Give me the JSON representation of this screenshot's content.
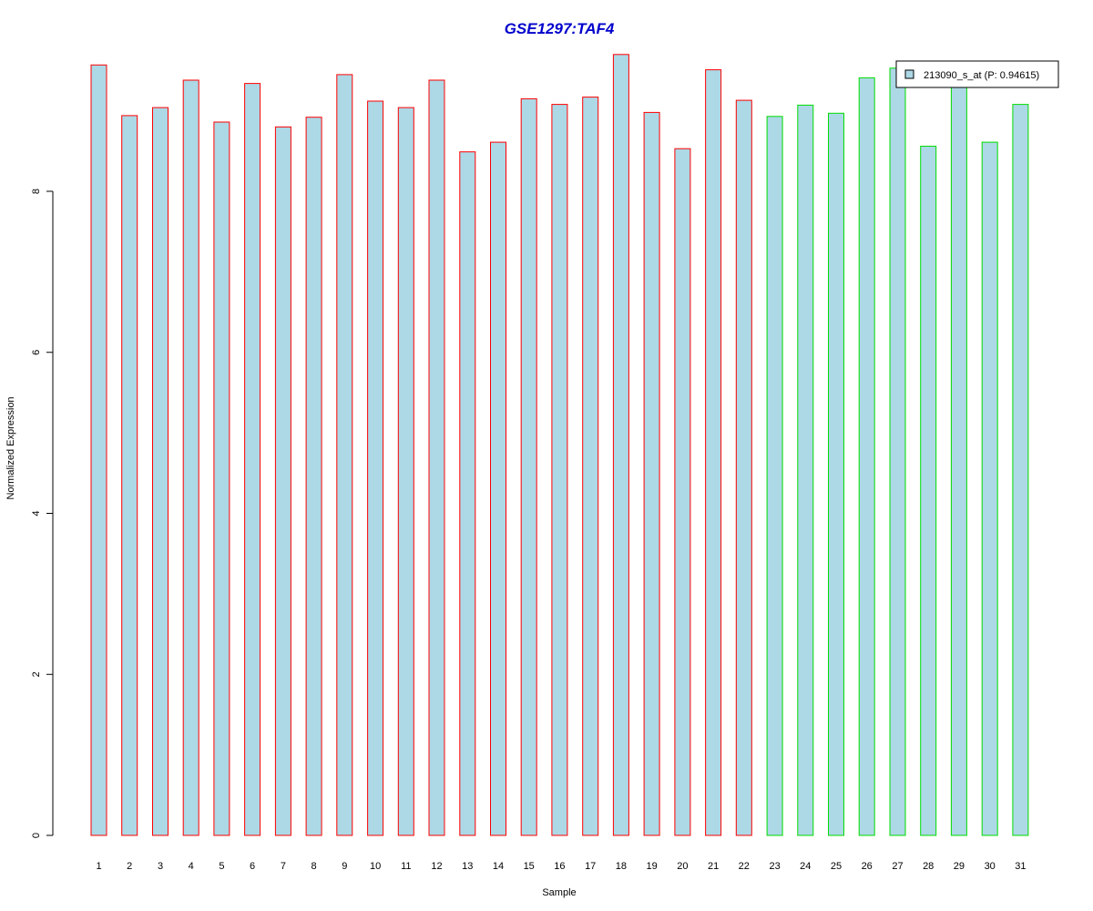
{
  "chart_data": {
    "type": "bar",
    "title": "GSE1297:TAF4",
    "xlabel": "Sample",
    "ylabel": "Normalized Expression",
    "categories": [
      "1",
      "2",
      "3",
      "4",
      "5",
      "6",
      "7",
      "8",
      "9",
      "10",
      "11",
      "12",
      "13",
      "14",
      "15",
      "16",
      "17",
      "18",
      "19",
      "20",
      "21",
      "22",
      "23",
      "24",
      "25",
      "26",
      "27",
      "28",
      "29",
      "30",
      "31"
    ],
    "series": [
      {
        "name": "213090_s_at (P: 0.94615)",
        "values": [
          9.57,
          8.94,
          9.04,
          9.38,
          8.86,
          9.34,
          8.8,
          8.92,
          9.45,
          9.12,
          9.04,
          9.38,
          8.49,
          8.61,
          9.15,
          9.08,
          9.17,
          9.7,
          8.98,
          8.53,
          9.51,
          9.13,
          8.93,
          9.07,
          8.97,
          9.41,
          9.53,
          8.56,
          9.4,
          8.61,
          9.08
        ]
      }
    ],
    "groups": [
      "red",
      "red",
      "red",
      "red",
      "red",
      "red",
      "red",
      "red",
      "red",
      "red",
      "red",
      "red",
      "red",
      "red",
      "red",
      "red",
      "red",
      "red",
      "red",
      "red",
      "red",
      "red",
      "green",
      "green",
      "green",
      "green",
      "green",
      "green",
      "green",
      "green",
      "green"
    ],
    "yticks": [
      0,
      2,
      4,
      6,
      8
    ],
    "ylim": [
      0,
      10
    ],
    "legend_position": "top-right",
    "grid": false
  },
  "colors": {
    "title": "#0000cc",
    "bar_fill": "#add8e6",
    "border_red": "#ff0000",
    "border_green": "#00dd00",
    "axis": "#000000"
  }
}
